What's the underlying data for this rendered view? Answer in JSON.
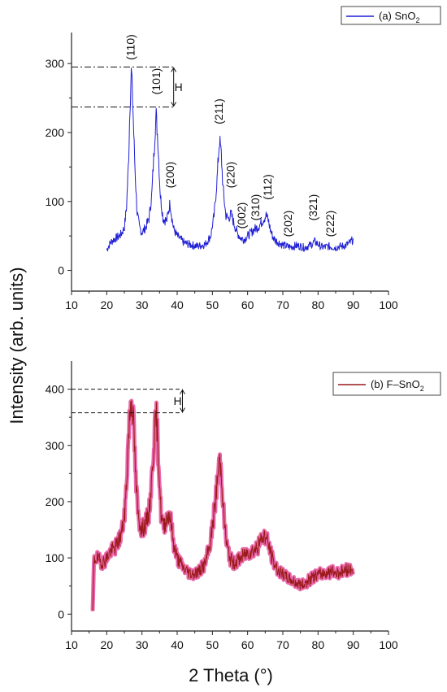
{
  "chart_data": [
    {
      "type": "line",
      "legend": {
        "label": "(a) SnO",
        "subscript": "2",
        "placement": "top-right",
        "color": "#1f1fd6"
      },
      "xlim": [
        10,
        100
      ],
      "ylim": [
        -30,
        345
      ],
      "xticks": [
        10,
        20,
        30,
        40,
        50,
        60,
        70,
        80,
        90,
        100
      ],
      "yticks": [
        0,
        100,
        200,
        300
      ],
      "grid": false,
      "series": [
        {
          "name": "(a) SnO2",
          "color": "#1f1fd6",
          "x": [
            20.0,
            21,
            22,
            23,
            24,
            25,
            25.6,
            26.2,
            26.6,
            27.0,
            27.4,
            28.0,
            28.6,
            29.3,
            30,
            31,
            32,
            32.8,
            33.5,
            34.0,
            34.5,
            35.2,
            36,
            37,
            37.6,
            38.0,
            38.4,
            39,
            40,
            42,
            44,
            46,
            48,
            49.5,
            50.5,
            51.3,
            52.0,
            52.5,
            53.0,
            53.8,
            54.5,
            55.3,
            56,
            57,
            58,
            59,
            60,
            61,
            62,
            62.7,
            63.3,
            64,
            64.6,
            65.3,
            65.9,
            66.5,
            67.2,
            68,
            69,
            70,
            71,
            72,
            73,
            74,
            75,
            76,
            77,
            78,
            79,
            80,
            81,
            82,
            83,
            84,
            85,
            86,
            87,
            88,
            89,
            90
          ],
          "y": [
            30,
            40,
            45,
            48,
            52,
            62,
            90,
            160,
            240,
            292,
            240,
            150,
            85,
            62,
            55,
            62,
            75,
            110,
            180,
            228,
            190,
            110,
            75,
            72,
            88,
            98,
            80,
            60,
            50,
            40,
            37,
            35,
            38,
            50,
            80,
            130,
            190,
            170,
            120,
            80,
            75,
            82,
            70,
            55,
            47,
            45,
            50,
            55,
            60,
            62,
            65,
            70,
            75,
            80,
            72,
            58,
            48,
            43,
            40,
            37,
            35,
            34,
            35,
            36,
            35,
            33,
            35,
            37,
            42,
            38,
            34,
            34,
            35,
            34,
            33,
            35,
            35,
            37,
            40,
            45
          ]
        }
      ],
      "peaks": [
        {
          "label": "(110)",
          "x": 27.0
        },
        {
          "label": "(101)",
          "x": 34.2
        },
        {
          "label": "(200)",
          "x": 38.2
        },
        {
          "label": "(211)",
          "x": 52.0
        },
        {
          "label": "(220)",
          "x": 55.4
        },
        {
          "label": "(002)",
          "x": 58.5
        },
        {
          "label": "(310)",
          "x": 62.4
        },
        {
          "label": "(112)",
          "x": 65.8
        },
        {
          "label": "(202)",
          "x": 71.6
        },
        {
          "label": "(321)",
          "x": 78.8
        },
        {
          "label": "(222)",
          "x": 83.6
        }
      ],
      "h_marker": {
        "label": "H",
        "y_top": 295,
        "y_bottom": 237,
        "x_from": 10,
        "x_to": 39
      }
    },
    {
      "type": "line",
      "legend": {
        "label": "(b) F–SnO",
        "subscript": "2",
        "placement": "top-right",
        "color": "#9a1a1a"
      },
      "xlim": [
        10,
        100
      ],
      "ylim": [
        -30,
        450
      ],
      "xticks": [
        10,
        20,
        30,
        40,
        50,
        60,
        70,
        80,
        90,
        100
      ],
      "yticks": [
        0,
        100,
        200,
        300,
        400
      ],
      "grid": false,
      "series": [
        {
          "name": "(b) F–SnO2",
          "color": "#9a1a1a",
          "band_color": "#e1368c",
          "x": [
            16.0,
            16.4,
            17,
            18,
            19,
            20,
            21,
            22,
            23,
            24,
            25,
            25.6,
            26.2,
            26.8,
            27.2,
            27.7,
            28.3,
            29,
            30,
            31,
            32,
            32.8,
            33.5,
            34.1,
            34.7,
            35.4,
            36,
            37,
            37.7,
            38.2,
            39,
            40,
            42,
            44,
            46,
            48,
            49.5,
            50.5,
            51.3,
            52.0,
            52.6,
            53.2,
            54,
            55,
            56,
            57,
            58,
            59,
            60,
            61,
            62,
            63,
            64,
            64.8,
            65.6,
            66.5,
            67.5,
            68.5,
            69.5,
            70.5,
            72,
            74,
            75.5,
            77,
            79,
            81,
            83,
            85,
            87,
            88,
            89,
            90
          ],
          "y": [
            0,
            95,
            100,
            95,
            92,
            100,
            112,
            115,
            125,
            140,
            170,
            230,
            320,
            375,
            380,
            330,
            230,
            170,
            150,
            160,
            180,
            240,
            320,
            350,
            280,
            180,
            155,
            170,
            180,
            165,
            125,
            100,
            80,
            72,
            75,
            90,
            130,
            180,
            230,
            275,
            250,
            180,
            125,
            100,
            90,
            95,
            100,
            105,
            110,
            112,
            115,
            120,
            135,
            140,
            130,
            110,
            90,
            80,
            72,
            68,
            62,
            55,
            52,
            58,
            68,
            72,
            75,
            74,
            76,
            78,
            80,
            82
          ]
        }
      ],
      "h_marker": {
        "label": "H",
        "y_top": 400,
        "y_bottom": 358,
        "x_from": 10,
        "x_to": 41.5
      }
    }
  ],
  "ylabel": "Intensity (arb. units)",
  "xlabel": "2 Theta (°)"
}
